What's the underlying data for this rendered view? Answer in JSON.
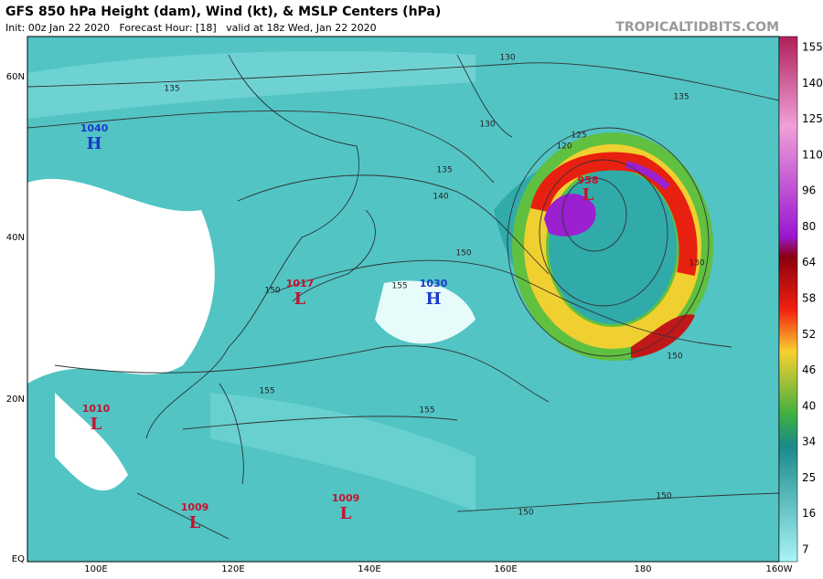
{
  "header": {
    "title": "GFS 850 hPa Height (dam), Wind (kt), & MSLP Centers (hPa)",
    "subtitle": "Init: 00z Jan 22 2020   Forecast Hour: [18]   valid at 18z Wed, Jan 22 2020",
    "site": "TROPICALTIDBITS.COM"
  },
  "map": {
    "lat_labels": [
      "60N",
      "40N",
      "20N",
      "EQ"
    ],
    "lon_labels": [
      "100E",
      "120E",
      "140E",
      "160E",
      "180",
      "160W"
    ],
    "centers": [
      {
        "letter": "H",
        "value": "1040"
      },
      {
        "letter": "H",
        "value": "1030"
      },
      {
        "letter": "L",
        "value": "1017"
      },
      {
        "letter": "L",
        "value": "1010"
      },
      {
        "letter": "L",
        "value": "1009"
      },
      {
        "letter": "L",
        "value": "1009"
      },
      {
        "letter": "L",
        "value": "958"
      }
    ],
    "contour_labels": [
      "130",
      "135",
      "130",
      "135",
      "125",
      "120",
      "135",
      "140",
      "150",
      "155",
      "150",
      "155",
      "155",
      "150",
      "150",
      "130",
      "150"
    ]
  },
  "colorbar": {
    "labels": [
      "155",
      "140",
      "125",
      "110",
      "96",
      "80",
      "64",
      "58",
      "52",
      "46",
      "40",
      "34",
      "25",
      "16",
      "7"
    ]
  }
}
